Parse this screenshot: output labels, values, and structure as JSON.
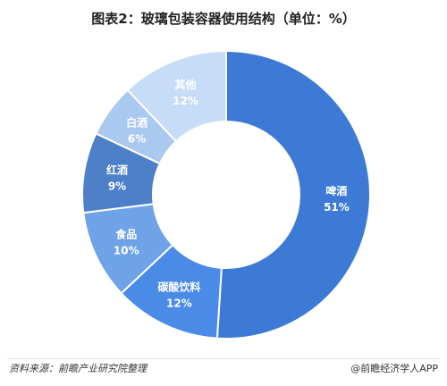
{
  "chart_data": {
    "type": "pie",
    "title": "图表2：玻璃包装容器使用结构（单位：%）",
    "unit": "%",
    "categories": [
      "啤酒",
      "碳酸饮料",
      "食品",
      "红酒",
      "白酒",
      "其他"
    ],
    "values": [
      51,
      12,
      10,
      9,
      6,
      12
    ],
    "colors": [
      "#3c7ad6",
      "#4a8be8",
      "#6fa3e8",
      "#4e80c9",
      "#a9c9f0",
      "#c6dcf7"
    ],
    "label_colors": [
      "#ffffff",
      "#ffffff",
      "#ffffff",
      "#ffffff",
      "#ffffff",
      "#ffffff"
    ]
  },
  "footer": {
    "source": "资料来源：前瞻产业研究院整理",
    "credit": "@前瞻经济学人APP"
  }
}
